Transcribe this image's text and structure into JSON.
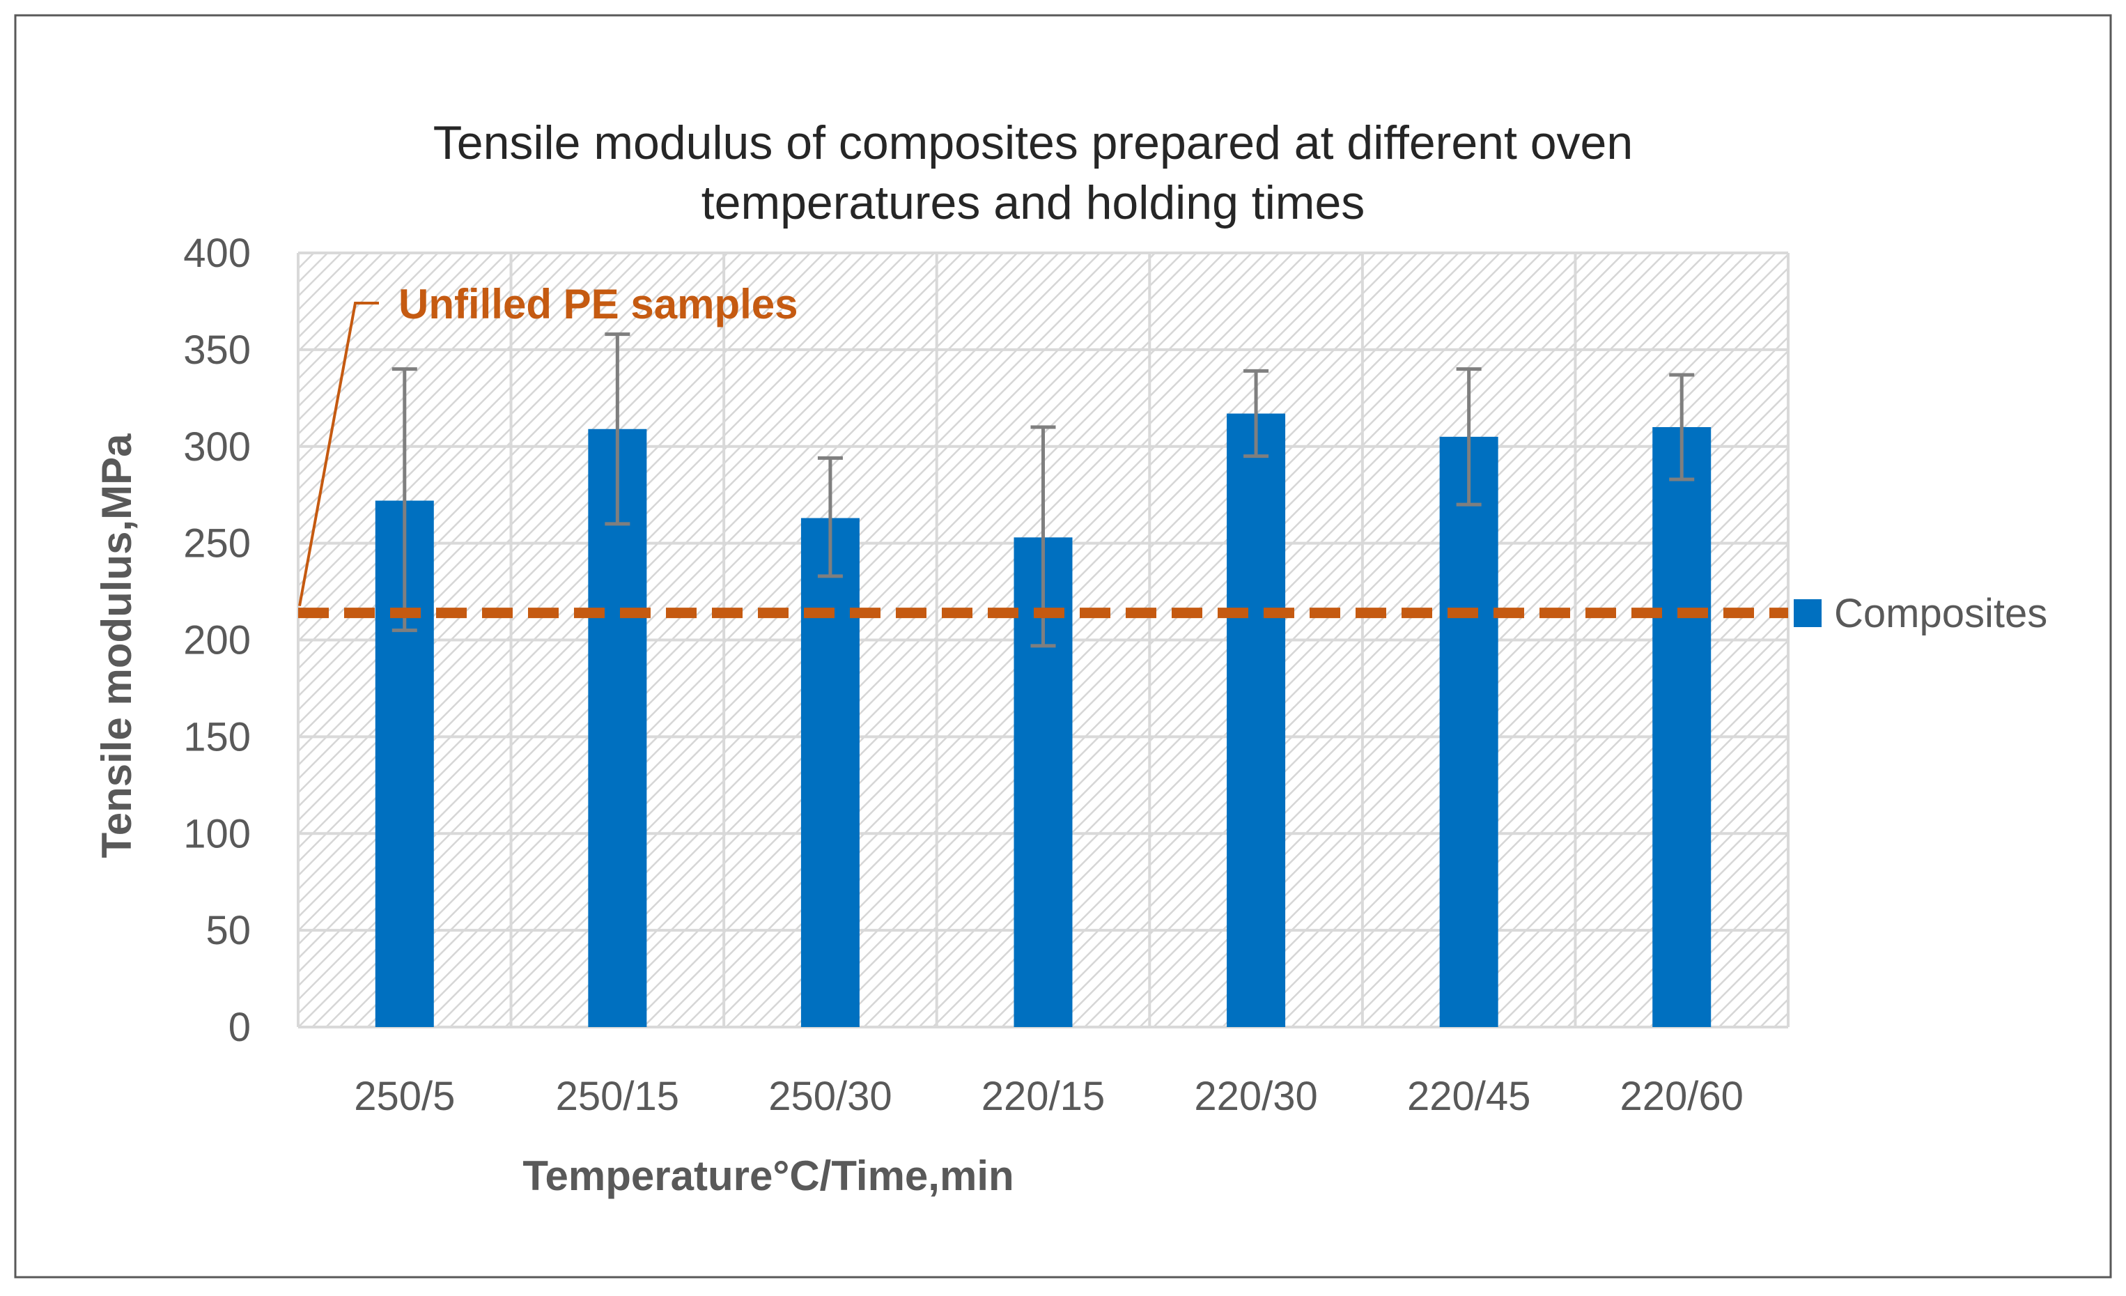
{
  "chart_data": {
    "type": "bar",
    "title": "Tensile modulus of composites prepared at different oven temperatures and holding times",
    "title_lines": [
      "Tensile modulus of composites prepared at different oven",
      "temperatures and holding times"
    ],
    "xlabel": "Temperature°C/Time,min",
    "ylabel": "Tensile modulus,MPa",
    "categories": [
      "250/5",
      "250/15",
      "250/30",
      "220/15",
      "220/30",
      "220/45",
      "220/60"
    ],
    "series": [
      {
        "name": "Composites",
        "values": [
          272,
          309,
          263,
          253,
          317,
          305,
          310
        ],
        "error_upper": [
          340,
          358,
          294,
          310,
          339,
          340,
          337
        ],
        "error_lower": [
          205,
          260,
          233,
          197,
          295,
          270,
          283
        ]
      }
    ],
    "reference_line": {
      "label": "Unfilled PE samples",
      "value": 214
    },
    "ylim": [
      0,
      400
    ],
    "yticks": [
      0,
      50,
      100,
      150,
      200,
      250,
      300,
      350,
      400
    ],
    "grid": true,
    "legend": "right",
    "colors": {
      "bar": "#0070C0",
      "reference": "#C55A11",
      "error_bar": "#7F7F7F",
      "grid": "#D9D9D9",
      "text": "#595959",
      "title": "#262626",
      "border": "#595959"
    }
  }
}
